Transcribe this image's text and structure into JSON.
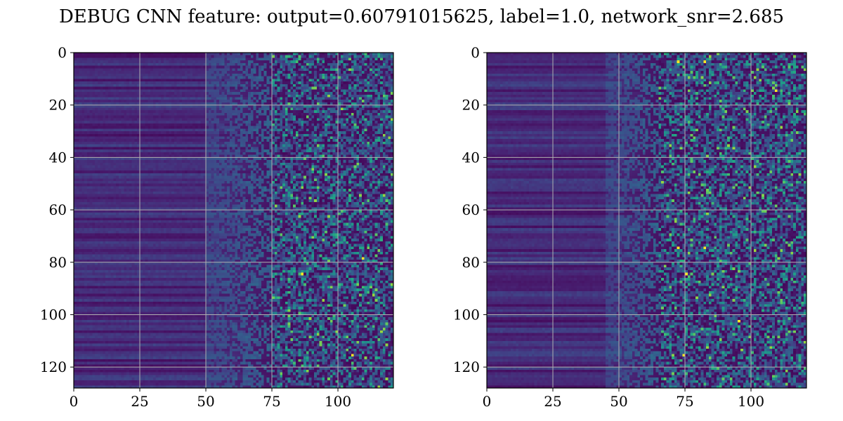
{
  "title": "DEBUG CNN feature: output=0.60791015625, label=1.0, network_snr=2.685",
  "chart_data": [
    {
      "type": "heatmap",
      "colormap": "viridis",
      "grid": true,
      "shape": {
        "rows": 128,
        "cols": 121
      },
      "xlim": [
        0,
        121
      ],
      "ylim": [
        128,
        0
      ],
      "xticks": [
        0,
        25,
        50,
        75,
        100
      ],
      "yticks": [
        0,
        20,
        40,
        60,
        80,
        100,
        120
      ],
      "xlabel": "",
      "ylabel": "",
      "pattern": {
        "smooth_until_col": 50,
        "noisy_from_col": 75,
        "bright_spots": [
          [
            78,
            109
          ],
          [
            115,
            105
          ],
          [
            84,
            86
          ]
        ]
      }
    },
    {
      "type": "heatmap",
      "colormap": "viridis",
      "grid": true,
      "shape": {
        "rows": 128,
        "cols": 121
      },
      "xlim": [
        0,
        121
      ],
      "ylim": [
        128,
        0
      ],
      "xticks": [
        0,
        25,
        50,
        75,
        100
      ],
      "yticks": [
        0,
        20,
        40,
        60,
        80,
        100,
        120
      ],
      "xlabel": "",
      "ylabel": "",
      "pattern": {
        "smooth_until_col": 45,
        "noisy_from_col": 65,
        "bright_spots": [
          [
            3,
            72
          ],
          [
            3,
            82
          ],
          [
            14,
            109
          ],
          [
            74,
            72
          ],
          [
            74,
            82
          ],
          [
            102,
            95
          ],
          [
            115,
            74
          ],
          [
            84,
            75
          ]
        ]
      }
    }
  ]
}
